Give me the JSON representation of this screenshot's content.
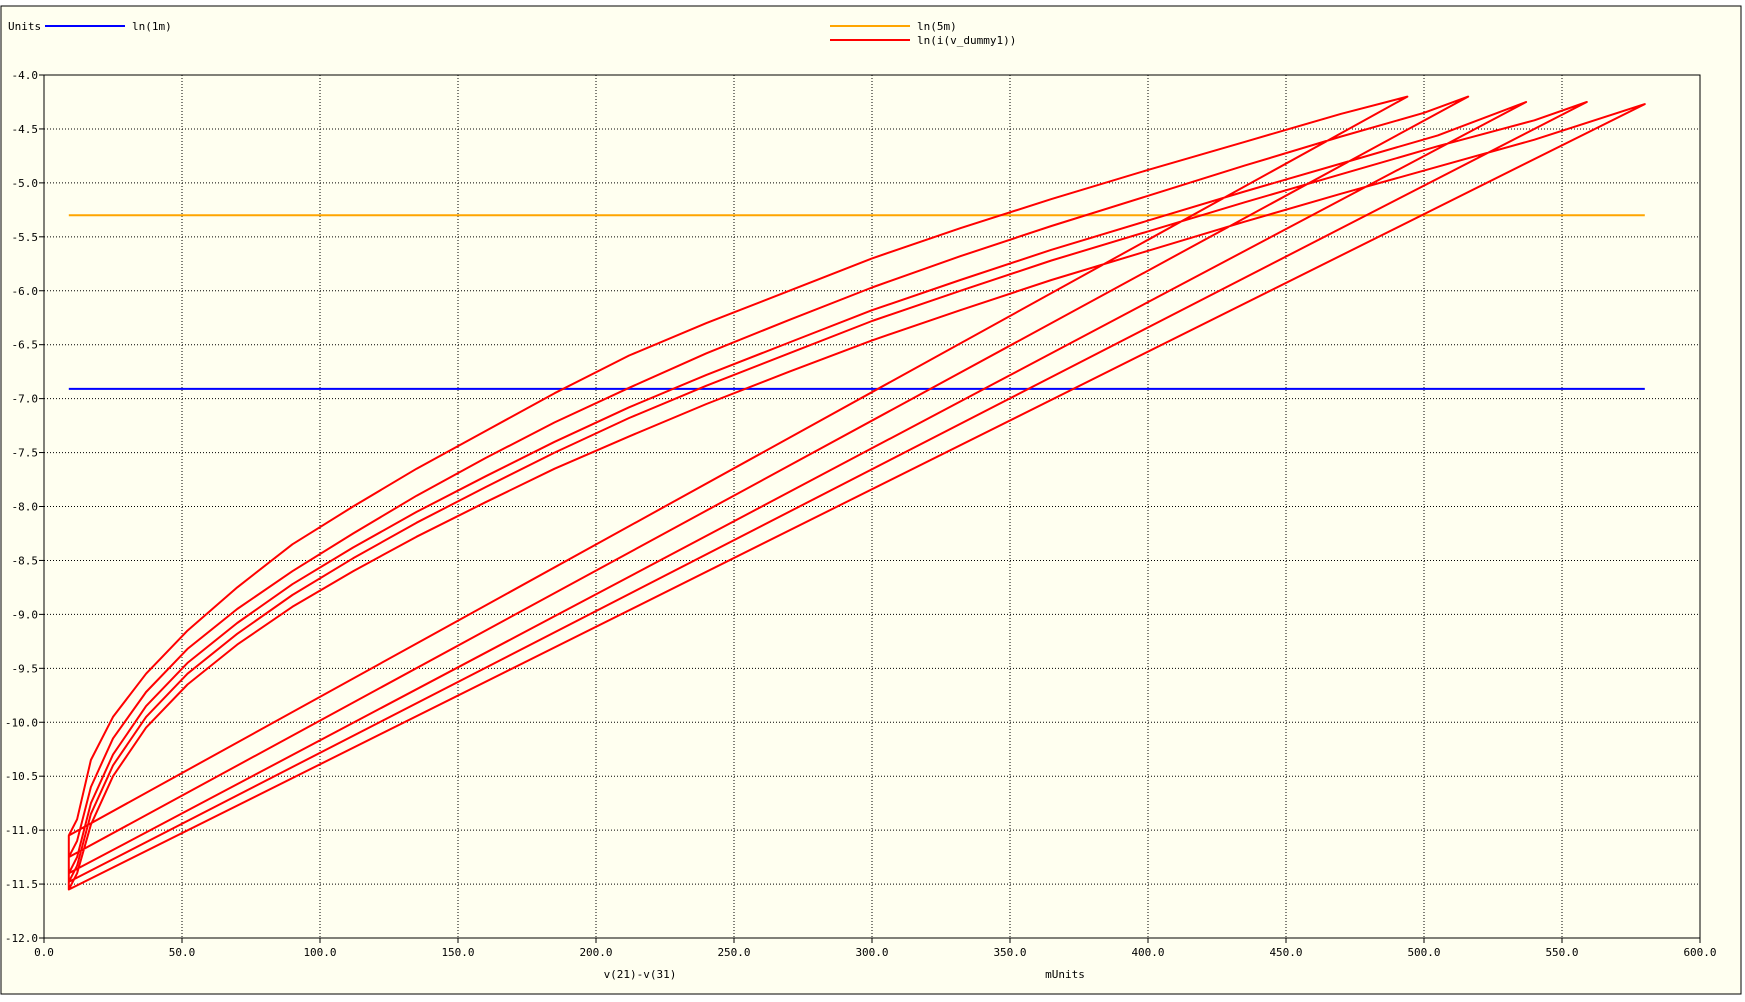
{
  "chart_data": {
    "type": "line",
    "y_units_label": "Units",
    "xlabel": "v(21)-v(31)",
    "x_units_label": "mUnits",
    "xlim": [
      0,
      600
    ],
    "ylim": [
      -12.0,
      -4.0
    ],
    "x_ticks": [
      0,
      50,
      100,
      150,
      200,
      250,
      300,
      350,
      400,
      450,
      500,
      550,
      600
    ],
    "x_tick_labels": [
      "0.0",
      "50.0",
      "100.0",
      "150.0",
      "200.0",
      "250.0",
      "300.0",
      "350.0",
      "400.0",
      "450.0",
      "500.0",
      "550.0",
      "600.0"
    ],
    "y_ticks": [
      -4.0,
      -4.5,
      -5.0,
      -5.5,
      -6.0,
      -6.5,
      -7.0,
      -7.5,
      -8.0,
      -8.5,
      -9.0,
      -9.5,
      -10.0,
      -10.5,
      -11.0,
      -11.5,
      -12.0
    ],
    "y_tick_labels": [
      "-4.0",
      "-4.5",
      "-5.0",
      "-5.5",
      "-6.0",
      "-6.5",
      "-7.0",
      "-7.5",
      "-8.0",
      "-8.5",
      "-9.0",
      "-9.5",
      "-10.0",
      "-10.5",
      "-11.0",
      "-11.5",
      "-12.0"
    ],
    "grid": true,
    "background": "#fffff0",
    "series": [
      {
        "name": "ln(1m)",
        "color": "#0000ff",
        "x": [
          9,
          580
        ],
        "y": [
          -6.91,
          -6.91
        ]
      },
      {
        "name": "ln(5m)",
        "color": "#ffa500",
        "x": [
          9,
          580
        ],
        "y": [
          -5.3,
          -5.3
        ]
      },
      {
        "name": "ln(i(v_dummy1))",
        "color": "#ff0000",
        "x": [
          9,
          12,
          17,
          25,
          37,
          52,
          70,
          90,
          112,
          135,
          160,
          185,
          212,
          240,
          270,
          300,
          332,
          365,
          400,
          435,
          470,
          494,
          494,
          9,
          9,
          12,
          17,
          25,
          37,
          52,
          70,
          90,
          112,
          135,
          160,
          185,
          212,
          240,
          270,
          300,
          332,
          365,
          400,
          435,
          470,
          500,
          516,
          516,
          9,
          9,
          12,
          17,
          25,
          37,
          52,
          70,
          90,
          112,
          135,
          160,
          185,
          212,
          240,
          270,
          300,
          332,
          365,
          400,
          435,
          470,
          505,
          537,
          537,
          9,
          9,
          12,
          17,
          25,
          37,
          52,
          70,
          90,
          112,
          135,
          160,
          185,
          212,
          240,
          270,
          300,
          332,
          365,
          400,
          435,
          470,
          505,
          540,
          559,
          559,
          9,
          9,
          12,
          17,
          25,
          37,
          52,
          70,
          90,
          112,
          135,
          160,
          185,
          212,
          240,
          270,
          300,
          332,
          365,
          400,
          435,
          470,
          505,
          540,
          580,
          580,
          9
        ],
        "y": [
          -11.05,
          -10.9,
          -10.35,
          -9.95,
          -9.55,
          -9.15,
          -8.75,
          -8.35,
          -8.0,
          -7.65,
          -7.3,
          -6.95,
          -6.6,
          -6.3,
          -6.0,
          -5.7,
          -5.42,
          -5.15,
          -4.88,
          -4.62,
          -4.36,
          -4.2,
          -4.2,
          -11.05,
          -11.25,
          -11.1,
          -10.6,
          -10.15,
          -9.72,
          -9.32,
          -8.95,
          -8.6,
          -8.25,
          -7.9,
          -7.55,
          -7.22,
          -6.9,
          -6.58,
          -6.27,
          -5.97,
          -5.68,
          -5.4,
          -5.12,
          -4.84,
          -4.57,
          -4.35,
          -4.2,
          -4.2,
          -11.25,
          -11.4,
          -11.25,
          -10.75,
          -10.3,
          -9.85,
          -9.45,
          -9.08,
          -8.72,
          -8.38,
          -8.05,
          -7.72,
          -7.4,
          -7.08,
          -6.78,
          -6.48,
          -6.18,
          -5.9,
          -5.62,
          -5.35,
          -5.08,
          -4.82,
          -4.56,
          -4.25,
          -4.25,
          -11.4,
          -11.48,
          -11.33,
          -10.85,
          -10.4,
          -9.95,
          -9.55,
          -9.18,
          -8.82,
          -8.48,
          -8.15,
          -7.82,
          -7.5,
          -7.18,
          -6.88,
          -6.58,
          -6.28,
          -6.0,
          -5.72,
          -5.45,
          -5.18,
          -4.92,
          -4.66,
          -4.42,
          -4.25,
          -4.25,
          -11.48,
          -11.55,
          -11.4,
          -10.95,
          -10.5,
          -10.05,
          -9.65,
          -9.28,
          -8.93,
          -8.6,
          -8.28,
          -7.96,
          -7.65,
          -7.35,
          -7.05,
          -6.75,
          -6.46,
          -6.18,
          -5.9,
          -5.63,
          -5.36,
          -5.1,
          -4.85,
          -4.6,
          -4.27,
          -4.27,
          -11.55
        ]
      }
    ],
    "legend": [
      {
        "label": "Units",
        "color": ""
      },
      {
        "label": "ln(1m)",
        "color": "#0000ff"
      },
      {
        "label": "ln(5m)",
        "color": "#ffa500"
      },
      {
        "label": "ln(i(v_dummy1))",
        "color": "#ff0000"
      }
    ]
  }
}
